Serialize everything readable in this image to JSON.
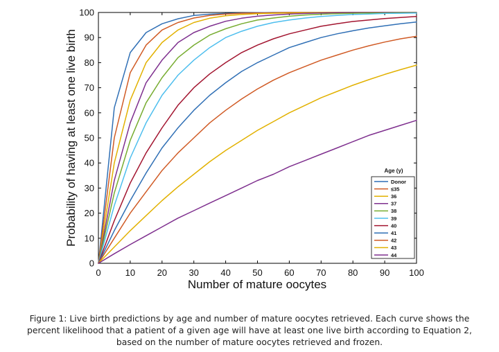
{
  "chart_data": {
    "type": "line",
    "title": "",
    "xlabel": "Number of mature oocytes",
    "ylabel": "Probability of having at least one live birth",
    "xlim": [
      0,
      100
    ],
    "ylim": [
      0,
      100
    ],
    "x_ticks": [
      0,
      10,
      20,
      30,
      40,
      50,
      60,
      70,
      80,
      90,
      100
    ],
    "y_ticks": [
      0,
      10,
      20,
      30,
      40,
      50,
      60,
      70,
      80,
      90,
      100
    ],
    "grid": false,
    "legend_title": "Age (y)",
    "legend_position": "right",
    "x": [
      0,
      5,
      10,
      15,
      20,
      25,
      30,
      35,
      40,
      45,
      50,
      55,
      60,
      65,
      70,
      75,
      80,
      85,
      90,
      95,
      100
    ],
    "series": [
      {
        "name": "Donor",
        "color": "#2f6fb5",
        "values": [
          0,
          62,
          84,
          92,
          95.5,
          97.5,
          98.8,
          99.3,
          99.6,
          99.8,
          99.9,
          100,
          100,
          100,
          100,
          100,
          100,
          100,
          100,
          100,
          100
        ]
      },
      {
        "name": "≤35",
        "color": "#d05a24",
        "values": [
          0,
          50,
          76,
          87,
          93,
          96,
          97.8,
          98.8,
          99.4,
          99.7,
          99.8,
          99.9,
          100,
          100,
          100,
          100,
          100,
          100,
          100,
          100,
          100
        ]
      },
      {
        "name": "36",
        "color": "#e2b100",
        "values": [
          0,
          40,
          65,
          80,
          88,
          93,
          96,
          97.7,
          98.7,
          99.2,
          99.5,
          99.7,
          99.8,
          99.9,
          100,
          100,
          100,
          100,
          100,
          100,
          100
        ]
      },
      {
        "name": "37",
        "color": "#7e2f8e",
        "values": [
          0,
          33,
          56,
          72,
          81,
          88,
          92,
          94.5,
          96.5,
          97.7,
          98.5,
          99,
          99.4,
          99.6,
          99.8,
          99.9,
          100,
          100,
          100,
          100,
          100
        ]
      },
      {
        "name": "38",
        "color": "#77ac30",
        "values": [
          0,
          28,
          49,
          64,
          74,
          82,
          87,
          91,
          93.5,
          95.5,
          97,
          97.8,
          98.5,
          99,
          99.3,
          99.5,
          99.7,
          99.8,
          99.8,
          99.9,
          99.9
        ]
      },
      {
        "name": "39",
        "color": "#4dbeee",
        "values": [
          0,
          23,
          42,
          56,
          67,
          75,
          81,
          86,
          90,
          92.5,
          94.5,
          96,
          97,
          97.8,
          98.4,
          98.8,
          99.2,
          99.4,
          99.6,
          99.7,
          99.8
        ]
      },
      {
        "name": "40",
        "color": "#a2142f",
        "values": [
          0,
          17,
          32,
          44,
          54,
          63,
          70,
          75.5,
          80,
          84,
          87,
          89.5,
          91.5,
          93,
          94.5,
          95.5,
          96.4,
          97,
          97.6,
          98,
          98.4
        ]
      },
      {
        "name": "41",
        "color": "#2f6fb5",
        "values": [
          0,
          13,
          25,
          36,
          46,
          54,
          61,
          67,
          72,
          76.5,
          80,
          83,
          86,
          88,
          90,
          91.5,
          92.7,
          93.8,
          94.7,
          95.5,
          96.2
        ]
      },
      {
        "name": "42",
        "color": "#d05a24",
        "values": [
          0,
          10,
          20,
          28.5,
          37,
          44,
          50,
          56,
          61,
          65.5,
          69.5,
          73,
          76,
          78.5,
          81,
          83,
          85,
          86.7,
          88.2,
          89.5,
          90.5
        ]
      },
      {
        "name": "43",
        "color": "#e2b100",
        "values": [
          0,
          6.5,
          13,
          19,
          25,
          30.5,
          35.5,
          40.5,
          45,
          49,
          53,
          56.5,
          60,
          63,
          66,
          68.5,
          71,
          73.2,
          75.3,
          77.2,
          79
        ]
      },
      {
        "name": "44",
        "color": "#7e2f8e",
        "values": [
          0,
          3.8,
          7.5,
          11,
          14.5,
          18,
          21,
          24,
          27,
          30,
          33,
          35.5,
          38.5,
          41,
          43.5,
          46,
          48.5,
          51,
          53,
          55,
          57
        ]
      }
    ]
  },
  "caption": {
    "line1": "Figure 1: Live birth predictions by age and number of mature oocytes retrieved. Each curve shows the",
    "line2": "percent likelihood that a patient of a given age will have at least one live birth according to Equation 2,",
    "line3": "based on the number of mature oocytes retrieved and frozen."
  }
}
